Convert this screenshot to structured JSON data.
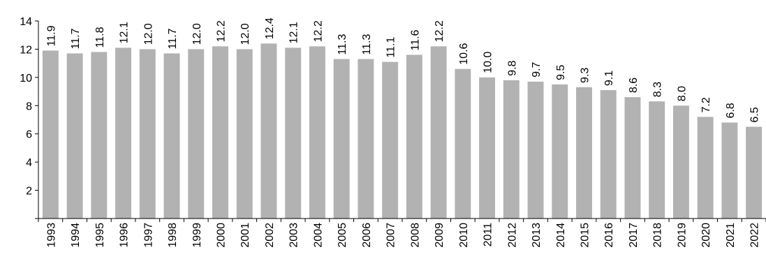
{
  "chart_data": {
    "type": "bar",
    "title": "",
    "xlabel": "",
    "ylabel": "",
    "categories": [
      "1993",
      "1994",
      "1995",
      "1996",
      "1997",
      "1998",
      "1999",
      "2000",
      "2001",
      "2002",
      "2003",
      "2004",
      "2005",
      "2006",
      "2007",
      "2008",
      "2009",
      "2010",
      "2011",
      "2012",
      "2013",
      "2014",
      "2015",
      "2016",
      "2017",
      "2018",
      "2019",
      "2020",
      "2021",
      "2022"
    ],
    "values": [
      11.9,
      11.7,
      11.8,
      12.1,
      12.0,
      11.7,
      12.0,
      12.2,
      12.0,
      12.4,
      12.1,
      12.2,
      11.3,
      11.3,
      11.1,
      11.6,
      12.2,
      10.6,
      10.0,
      9.8,
      9.7,
      9.5,
      9.3,
      9.1,
      8.6,
      8.3,
      8.0,
      7.2,
      6.8,
      6.5
    ],
    "value_labels": [
      "11.9",
      "11.7",
      "11.8",
      "12.1",
      "12.0",
      "11.7",
      "12.0",
      "12.2",
      "12.0",
      "12.4",
      "12.1",
      "12.2",
      "11.3",
      "11.3",
      "11.1",
      "11.6",
      "12.2",
      "10.6",
      "10.0",
      "9.8",
      "9.7",
      "9.5",
      "9.3",
      "9.1",
      "8.6",
      "8.3",
      "8.0",
      "7.2",
      "6.8",
      "6.5"
    ],
    "yticks": [
      "2",
      "4",
      "6",
      "8",
      "10",
      "12",
      "14"
    ],
    "ylim": [
      0,
      14
    ],
    "grid": false,
    "legend": "none",
    "bar_color": "#b2b2b2"
  }
}
